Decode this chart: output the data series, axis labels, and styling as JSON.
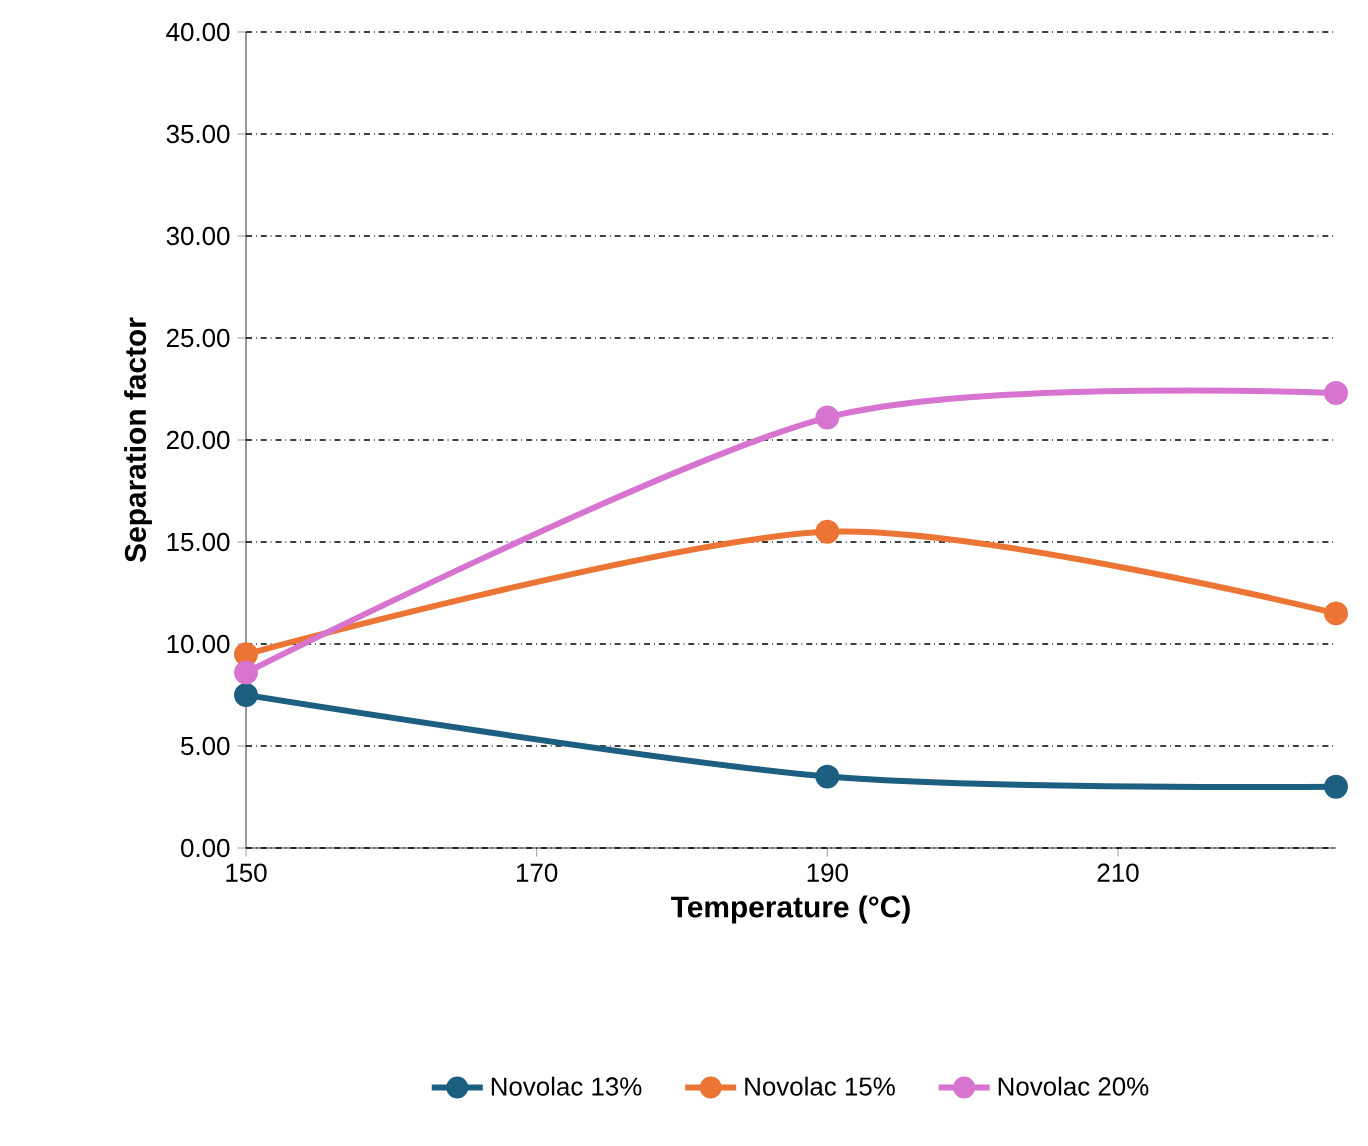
{
  "chart_data": {
    "type": "line",
    "xlabel": "Temperature (°C)",
    "ylabel": "Separation factor",
    "xlim": [
      150,
      225
    ],
    "xticks": [
      150,
      170,
      190,
      210
    ],
    "ylim": [
      0,
      40
    ],
    "yticks": [
      {
        "value": 0,
        "label": "0.00"
      },
      {
        "value": 5,
        "label": "5.00"
      },
      {
        "value": 10,
        "label": "10.00"
      },
      {
        "value": 15,
        "label": "15.00"
      },
      {
        "value": 20,
        "label": "20.00"
      },
      {
        "value": 25,
        "label": "25.00"
      },
      {
        "value": 30,
        "label": "30.00"
      },
      {
        "value": 35,
        "label": "35.00"
      },
      {
        "value": 40,
        "label": "40.00"
      }
    ],
    "x": [
      150,
      190,
      225
    ],
    "series": [
      {
        "name": "Novolac 13%",
        "color": "#1c5f80",
        "values": [
          7.5,
          3.5,
          3.0
        ]
      },
      {
        "name": "Novolac 15%",
        "color": "#ec7535",
        "values": [
          9.5,
          15.5,
          11.5
        ]
      },
      {
        "name": "Novolac 20%",
        "color": "#d774d0",
        "values": [
          8.6,
          21.1,
          22.3
        ]
      }
    ],
    "grid": "y",
    "legend": "bottom",
    "marker": "circle",
    "line_style": "solid"
  }
}
